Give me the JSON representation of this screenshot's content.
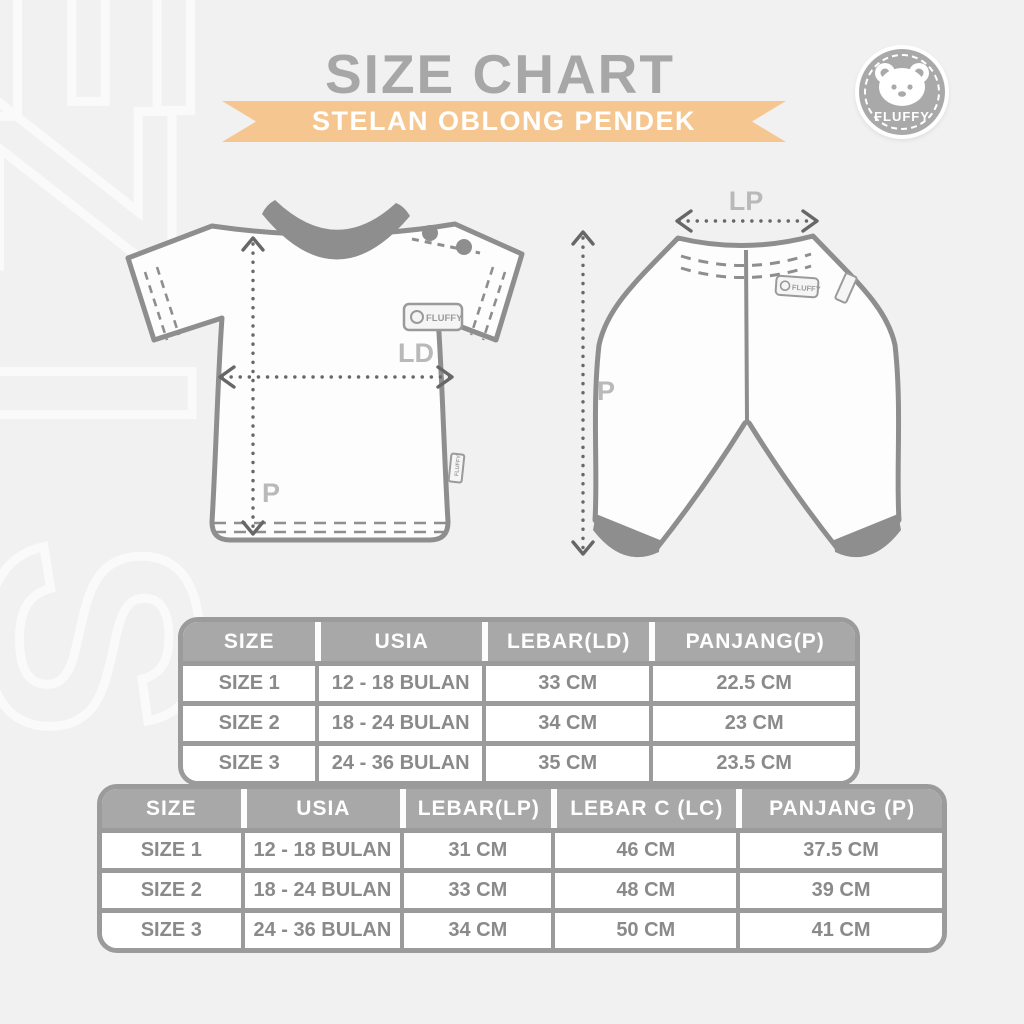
{
  "page": {
    "background_color": "#f1f1f2",
    "watermark_text": "SIZE",
    "watermark_letters": [
      "E",
      "Z",
      "I",
      "S"
    ],
    "watermark_color": "#fafafa"
  },
  "header": {
    "title": "SIZE CHART",
    "title_color": "#a7a7a7",
    "ribbon_label": "STELAN OBLONG PENDEK",
    "ribbon_color": "#f6c690",
    "logo": {
      "brand": "FLUFFY",
      "icon": "bear-icon"
    }
  },
  "diagram": {
    "shirt": {
      "item": "t-shirt",
      "width_label": "LD",
      "length_label": "P",
      "tag_text": "FLUFFY",
      "side_tag_text": "FLUFFY",
      "line_color": "#8e8e8e",
      "accent_color": "#8e8e8e",
      "measure_label_color": "#b9b9b9"
    },
    "pants": {
      "item": "pants",
      "width_label": "LP",
      "length_label": "P",
      "tag_text": "FLUFFY",
      "line_color": "#8e8e8e",
      "cuff_color": "#8e8e8e",
      "measure_label_color": "#b9b9b9"
    }
  },
  "chart_data": [
    {
      "type": "table",
      "garment": "shirt",
      "columns": [
        "SIZE",
        "USIA",
        "LEBAR(LD)",
        "PANJANG(P)"
      ],
      "rows": [
        [
          "SIZE 1",
          "12 - 18 BULAN",
          "33 CM",
          "22.5 CM"
        ],
        [
          "SIZE 2",
          "18 - 24 BULAN",
          "34 CM",
          "23 CM"
        ],
        [
          "SIZE 3",
          "24 - 36 BULAN",
          "35 CM",
          "23.5 CM"
        ]
      ],
      "header_bg": "#a8a8a8",
      "header_text_color": "#ffffff",
      "cell_text_color": "#8a8a8a",
      "border_color": "#9b9b9b"
    },
    {
      "type": "table",
      "garment": "pants",
      "columns": [
        "SIZE",
        "USIA",
        "LEBAR(LP)",
        "LEBAR C (LC)",
        "PANJANG (P)"
      ],
      "rows": [
        [
          "SIZE 1",
          "12 - 18 BULAN",
          "31 CM",
          "46 CM",
          "37.5 CM"
        ],
        [
          "SIZE 2",
          "18 - 24 BULAN",
          "33 CM",
          "48 CM",
          "39 CM"
        ],
        [
          "SIZE 3",
          "24 - 36 BULAN",
          "34 CM",
          "50 CM",
          "41 CM"
        ]
      ],
      "header_bg": "#a8a8a8",
      "header_text_color": "#ffffff",
      "cell_text_color": "#8a8a8a",
      "border_color": "#9b9b9b"
    }
  ]
}
